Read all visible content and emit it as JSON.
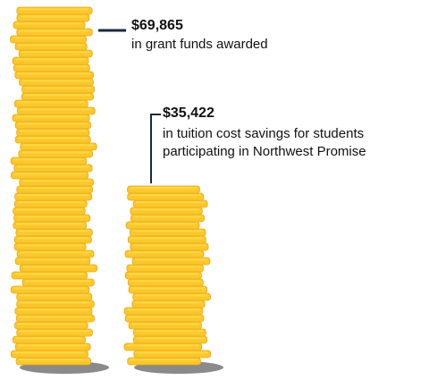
{
  "chart_data": {
    "type": "bar",
    "title": "",
    "xlabel": "",
    "ylabel": "",
    "grid": false,
    "legend": "none",
    "categories": [
      "in grant funds awarded",
      "in tuition cost savings for students participating in Northwest Promise"
    ],
    "values": [
      69865,
      35422
    ],
    "value_labels": [
      "$69,865",
      "$35,422"
    ],
    "descriptions": [
      [
        "in grant funds awarded"
      ],
      [
        "in tuition cost savings for students",
        "participating in Northwest Promise"
      ]
    ],
    "colors": {
      "coin_fill": "#FCC72A",
      "coin_highlight": "#FFD84A",
      "coin_edge": "#E8A81A",
      "shadow": "#8A8A8A",
      "leader_line": "#1A2B3C"
    }
  }
}
